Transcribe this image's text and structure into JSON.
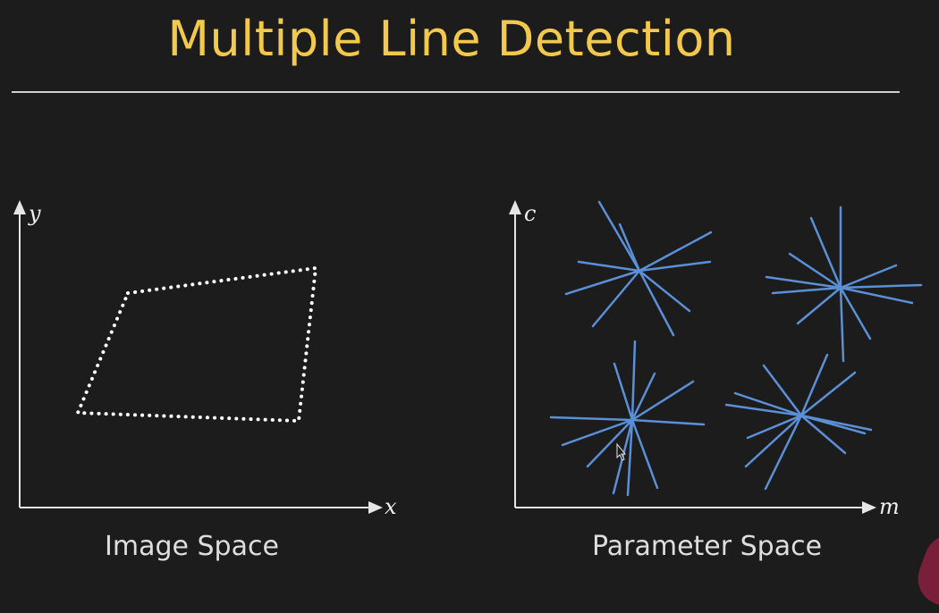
{
  "title": "Multiple Line Detection",
  "image_space": {
    "caption": "Image Space",
    "x_label": "x",
    "y_label": "y"
  },
  "parameter_space": {
    "caption": "Parameter Space",
    "x_label": "m",
    "y_label": "c",
    "line_color": "#5b8fd6",
    "cluster_count": 4
  },
  "colors": {
    "background": "#1c1c1c",
    "title": "#f2c94c",
    "axis": "#e6e6e6",
    "dots": "#ffffff"
  },
  "icons": [
    "mouse-cursor-icon"
  ]
}
